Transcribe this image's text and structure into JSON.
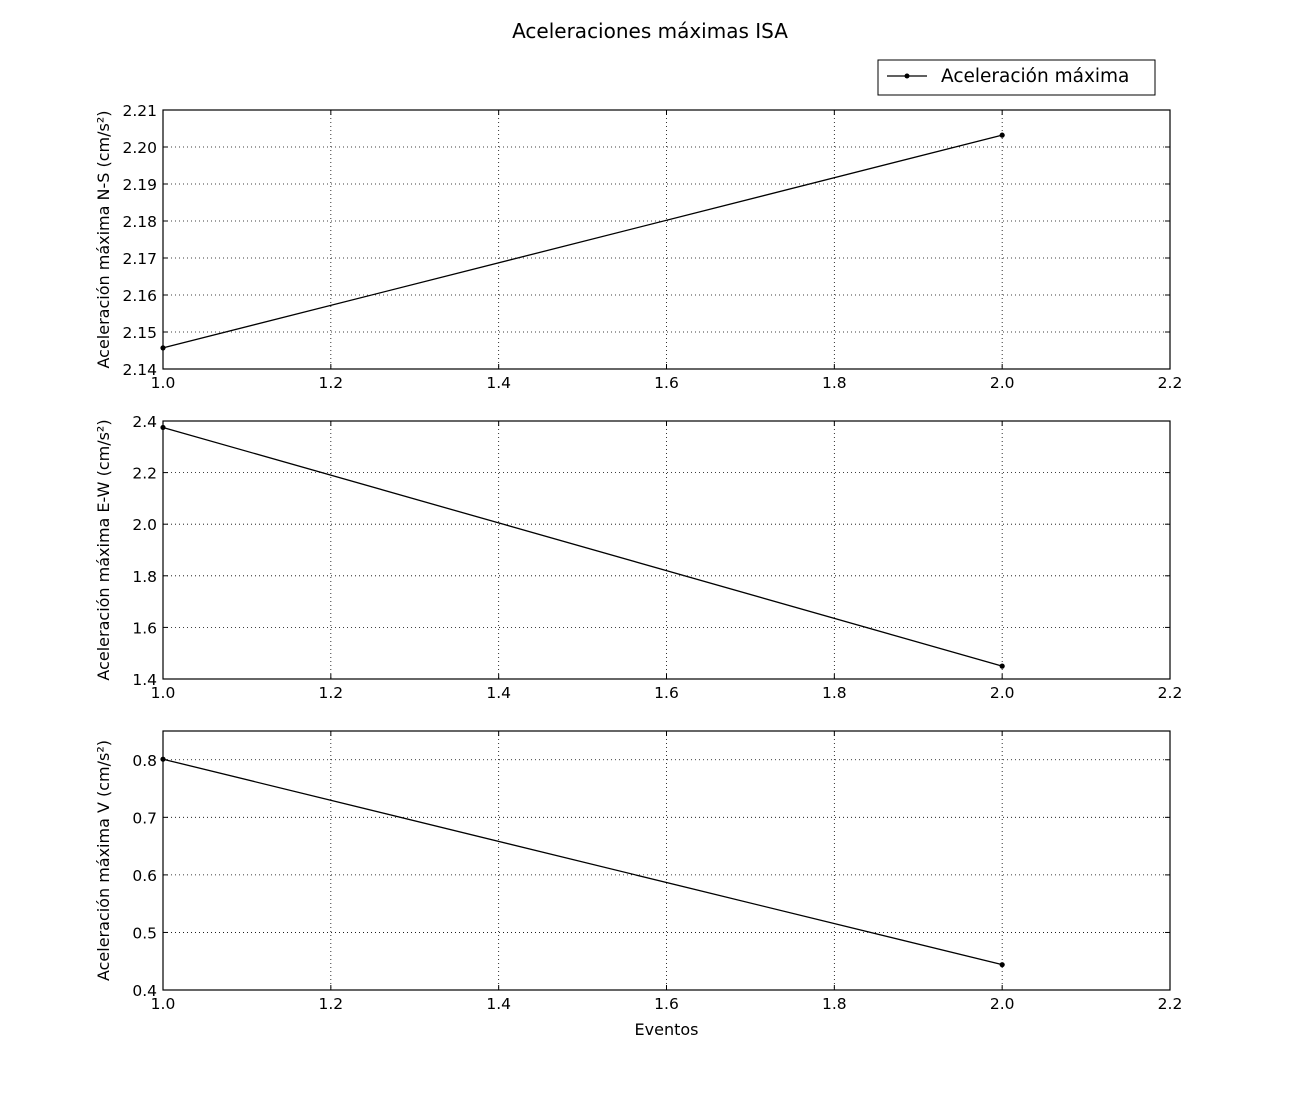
{
  "chart_data": {
    "type": "line",
    "title": "Aceleraciones máximas ISA",
    "legend": {
      "position": "top-right",
      "entries": [
        "Aceleración máxima"
      ]
    },
    "grid": true,
    "subplots": [
      {
        "ylabel": "Aceleración máxima N-S (cm/s²)",
        "xlabel": "",
        "xlim": [
          1.0,
          2.2
        ],
        "ylim": [
          2.14,
          2.21
        ],
        "xticks": [
          "1.0",
          "1.2",
          "1.4",
          "1.6",
          "1.8",
          "2.0",
          "2.2"
        ],
        "yticks": [
          "2.14",
          "2.15",
          "2.16",
          "2.17",
          "2.18",
          "2.19",
          "2.20",
          "2.21"
        ],
        "series": [
          {
            "name": "Aceleración máxima",
            "x": [
              1,
              2
            ],
            "y": [
              2.1457,
              2.2032
            ]
          }
        ]
      },
      {
        "ylabel": "Aceleración máxima E-W (cm/s²)",
        "xlabel": "",
        "xlim": [
          1.0,
          2.2
        ],
        "ylim": [
          1.4,
          2.4
        ],
        "xticks": [
          "1.0",
          "1.2",
          "1.4",
          "1.6",
          "1.8",
          "2.0",
          "2.2"
        ],
        "yticks": [
          "1.4",
          "1.6",
          "1.8",
          "2.0",
          "2.2",
          "2.4"
        ],
        "series": [
          {
            "name": "Aceleración máxima",
            "x": [
              1,
              2
            ],
            "y": [
              2.375,
              1.45
            ]
          }
        ]
      },
      {
        "ylabel": "Aceleración máxima V (cm/s²)",
        "xlabel": "Eventos",
        "xlim": [
          1.0,
          2.2
        ],
        "ylim": [
          0.4,
          0.85
        ],
        "xticks": [
          "1.0",
          "1.2",
          "1.4",
          "1.6",
          "1.8",
          "2.0",
          "2.2"
        ],
        "yticks": [
          "0.4",
          "0.5",
          "0.6",
          "0.7",
          "0.8"
        ],
        "series": [
          {
            "name": "Aceleración máxima",
            "x": [
              1,
              2
            ],
            "y": [
              0.801,
              0.444
            ]
          }
        ]
      }
    ]
  }
}
